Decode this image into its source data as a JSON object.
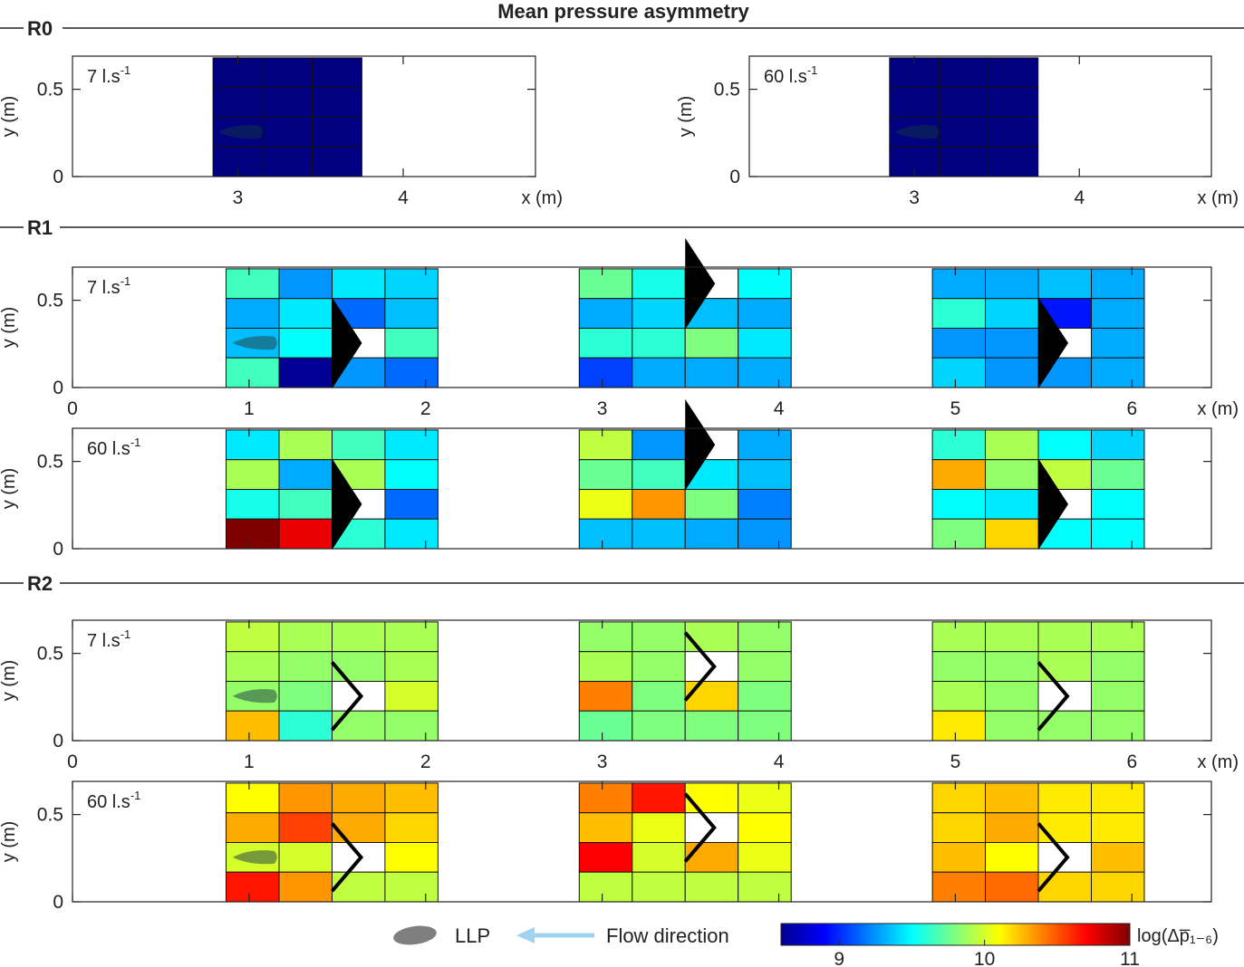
{
  "title": "Mean pressure asymmetry",
  "axis": {
    "xlabel": "x (m)",
    "ylabel": "y (m)"
  },
  "legend": {
    "llp_label": "LLP",
    "flow_label": "Flow direction",
    "colors": {
      "llp": "#7f7f7f",
      "flow_arrow": "#9fd3f2"
    }
  },
  "colorbar": {
    "label": "log(Δp̅₁₋₆)",
    "min": 8.6,
    "max": 11.0,
    "ticks": [
      9,
      10,
      11
    ],
    "tick_labels": [
      "9",
      "10",
      "11"
    ],
    "colormap": "jet"
  },
  "chart_data": [
    {
      "type": "heatmap",
      "section": "R0",
      "flow": "7 l.s-1",
      "flow_unit_sup": "-1",
      "flow_main": "7 l.s",
      "xlim": [
        2.0,
        4.8
      ],
      "ylim": [
        0,
        0.69
      ],
      "xticks": [
        3,
        4
      ],
      "yticks": [
        0,
        0.5
      ],
      "blocks": [
        {
          "x0": 2.85,
          "cols": 3,
          "cell_w": 0.3,
          "llp": true,
          "obstacle": null,
          "values": [
            [
              8.6,
              8.6,
              8.6
            ],
            [
              8.6,
              8.6,
              8.6
            ],
            [
              8.6,
              8.6,
              8.6
            ],
            [
              8.6,
              8.6,
              8.6
            ]
          ]
        }
      ]
    },
    {
      "type": "heatmap",
      "section": "R0",
      "flow": "60 l.s-1",
      "flow_unit_sup": "-1",
      "flow_main": "60 l.s",
      "xlim": [
        2.0,
        4.8
      ],
      "ylim": [
        0,
        0.69
      ],
      "xticks": [
        3,
        4
      ],
      "yticks": [
        0,
        0.5
      ],
      "blocks": [
        {
          "x0": 2.85,
          "cols": 3,
          "cell_w": 0.3,
          "llp": true,
          "obstacle": null,
          "values": [
            [
              8.6,
              8.6,
              8.6
            ],
            [
              8.6,
              8.6,
              8.6
            ],
            [
              8.6,
              8.6,
              8.6
            ],
            [
              8.6,
              8.6,
              8.6
            ]
          ]
        }
      ]
    },
    {
      "type": "heatmap",
      "section": "R1",
      "flow": "7 l.s-1",
      "flow_unit_sup": "-1",
      "flow_main": "7 l.s",
      "xlim": [
        0,
        6.45
      ],
      "ylim": [
        0,
        0.69
      ],
      "xticks": [
        0,
        1,
        2,
        3,
        4,
        5,
        6
      ],
      "yticks": [
        0,
        0.5
      ],
      "blocks": [
        {
          "x0": 0.87,
          "cols": 4,
          "cell_w": 0.3,
          "llp": true,
          "obstacle": "triangle",
          "values": [
            [
              9.65,
              9.25,
              9.45,
              9.4
            ],
            [
              9.3,
              9.45,
              9.15,
              9.35
            ],
            [
              9.35,
              9.5,
              null,
              9.65
            ],
            [
              9.65,
              8.65,
              9.25,
              9.15
            ]
          ]
        },
        {
          "x0": 2.87,
          "cols": 4,
          "cell_w": 0.3,
          "llp": false,
          "obstacle": "triangle",
          "values": [
            [
              9.75,
              9.55,
              null,
              9.5
            ],
            [
              9.3,
              9.4,
              9.35,
              9.3
            ],
            [
              9.6,
              9.6,
              9.8,
              9.45
            ],
            [
              9.05,
              9.3,
              9.3,
              9.3
            ]
          ]
        },
        {
          "x0": 4.87,
          "cols": 4,
          "cell_w": 0.3,
          "llp": false,
          "obstacle": "triangle",
          "values": [
            [
              9.3,
              9.3,
              9.35,
              9.3
            ],
            [
              9.6,
              9.4,
              8.95,
              9.3
            ],
            [
              9.25,
              9.25,
              null,
              9.3
            ],
            [
              9.4,
              9.25,
              9.25,
              9.3
            ]
          ]
        }
      ]
    },
    {
      "type": "heatmap",
      "section": "R1",
      "flow": "60 l.s-1",
      "flow_unit_sup": "-1",
      "flow_main": "60 l.s",
      "xlim": [
        0,
        6.45
      ],
      "ylim": [
        0,
        0.69
      ],
      "xticks": [
        0,
        1,
        2,
        3,
        4,
        5,
        6
      ],
      "yticks": [
        0,
        0.5
      ],
      "blocks": [
        {
          "x0": 0.87,
          "cols": 4,
          "cell_w": 0.3,
          "llp": false,
          "obstacle": "triangle",
          "values": [
            [
              9.45,
              9.9,
              9.65,
              9.45
            ],
            [
              9.9,
              9.3,
              9.9,
              9.5
            ],
            [
              9.55,
              9.65,
              null,
              9.15
            ],
            [
              11.0,
              10.75,
              9.6,
              9.45
            ]
          ]
        },
        {
          "x0": 2.87,
          "cols": 4,
          "cell_w": 0.3,
          "llp": false,
          "obstacle": "triangle",
          "values": [
            [
              9.95,
              9.25,
              null,
              9.3
            ],
            [
              9.75,
              9.65,
              9.45,
              9.35
            ],
            [
              10.05,
              10.35,
              9.8,
              9.2
            ],
            [
              9.35,
              9.35,
              9.3,
              9.25
            ]
          ]
        },
        {
          "x0": 4.87,
          "cols": 4,
          "cell_w": 0.3,
          "llp": false,
          "obstacle": "triangle",
          "values": [
            [
              9.6,
              9.9,
              9.5,
              9.4
            ],
            [
              10.3,
              9.85,
              9.95,
              9.75
            ],
            [
              9.5,
              9.45,
              null,
              9.5
            ],
            [
              9.8,
              10.2,
              9.5,
              9.5
            ]
          ]
        }
      ]
    },
    {
      "type": "heatmap",
      "section": "R2",
      "flow": "7 l.s-1",
      "flow_unit_sup": "-1",
      "flow_main": "7 l.s",
      "xlim": [
        0,
        6.45
      ],
      "ylim": [
        0,
        0.69
      ],
      "xticks": [
        0,
        1,
        2,
        3,
        4,
        5,
        6
      ],
      "yticks": [
        0,
        0.5
      ],
      "blocks": [
        {
          "x0": 0.87,
          "cols": 4,
          "cell_w": 0.3,
          "llp": true,
          "obstacle": "chevron",
          "values": [
            [
              9.95,
              9.9,
              9.9,
              9.9
            ],
            [
              9.9,
              9.85,
              9.85,
              9.9
            ],
            [
              9.85,
              9.8,
              null,
              10.0
            ],
            [
              10.25,
              9.6,
              9.85,
              9.85
            ]
          ]
        },
        {
          "x0": 2.87,
          "cols": 4,
          "cell_w": 0.3,
          "llp": false,
          "obstacle": "chevron",
          "values": [
            [
              9.85,
              9.85,
              9.9,
              9.85
            ],
            [
              9.9,
              9.85,
              null,
              9.85
            ],
            [
              10.4,
              9.8,
              10.2,
              9.8
            ],
            [
              9.75,
              9.8,
              9.8,
              9.8
            ]
          ]
        },
        {
          "x0": 4.87,
          "cols": 4,
          "cell_w": 0.3,
          "llp": false,
          "obstacle": "chevron",
          "values": [
            [
              9.9,
              9.9,
              9.9,
              9.9
            ],
            [
              9.85,
              9.85,
              9.9,
              9.85
            ],
            [
              9.9,
              9.85,
              null,
              9.85
            ],
            [
              10.15,
              9.85,
              9.85,
              9.85
            ]
          ]
        }
      ]
    },
    {
      "type": "heatmap",
      "section": "R2",
      "flow": "60 l.s-1",
      "flow_unit_sup": "-1",
      "flow_main": "60 l.s",
      "xlim": [
        0,
        6.45
      ],
      "ylim": [
        0,
        0.69
      ],
      "xticks": [
        0,
        1,
        2,
        3,
        4,
        5,
        6
      ],
      "yticks": [
        0,
        0.5
      ],
      "blocks": [
        {
          "x0": 0.87,
          "cols": 4,
          "cell_w": 0.3,
          "llp": true,
          "obstacle": "chevron",
          "values": [
            [
              10.1,
              10.35,
              10.3,
              10.25
            ],
            [
              10.3,
              10.55,
              10.3,
              10.2
            ],
            [
              10.0,
              10.0,
              null,
              10.1
            ],
            [
              10.65,
              10.35,
              9.95,
              9.95
            ]
          ]
        },
        {
          "x0": 2.87,
          "cols": 4,
          "cell_w": 0.3,
          "llp": false,
          "obstacle": "chevron",
          "values": [
            [
              10.4,
              10.65,
              10.1,
              10.05
            ],
            [
              10.25,
              10.05,
              null,
              10.1
            ],
            [
              10.7,
              10.0,
              10.3,
              10.05
            ],
            [
              9.95,
              9.95,
              9.95,
              9.95
            ]
          ]
        },
        {
          "x0": 4.87,
          "cols": 4,
          "cell_w": 0.3,
          "llp": false,
          "obstacle": "chevron",
          "values": [
            [
              10.2,
              10.25,
              10.15,
              10.15
            ],
            [
              10.2,
              10.3,
              10.15,
              10.15
            ],
            [
              10.25,
              10.1,
              null,
              10.25
            ],
            [
              10.4,
              10.45,
              10.2,
              10.2
            ]
          ]
        }
      ]
    }
  ]
}
